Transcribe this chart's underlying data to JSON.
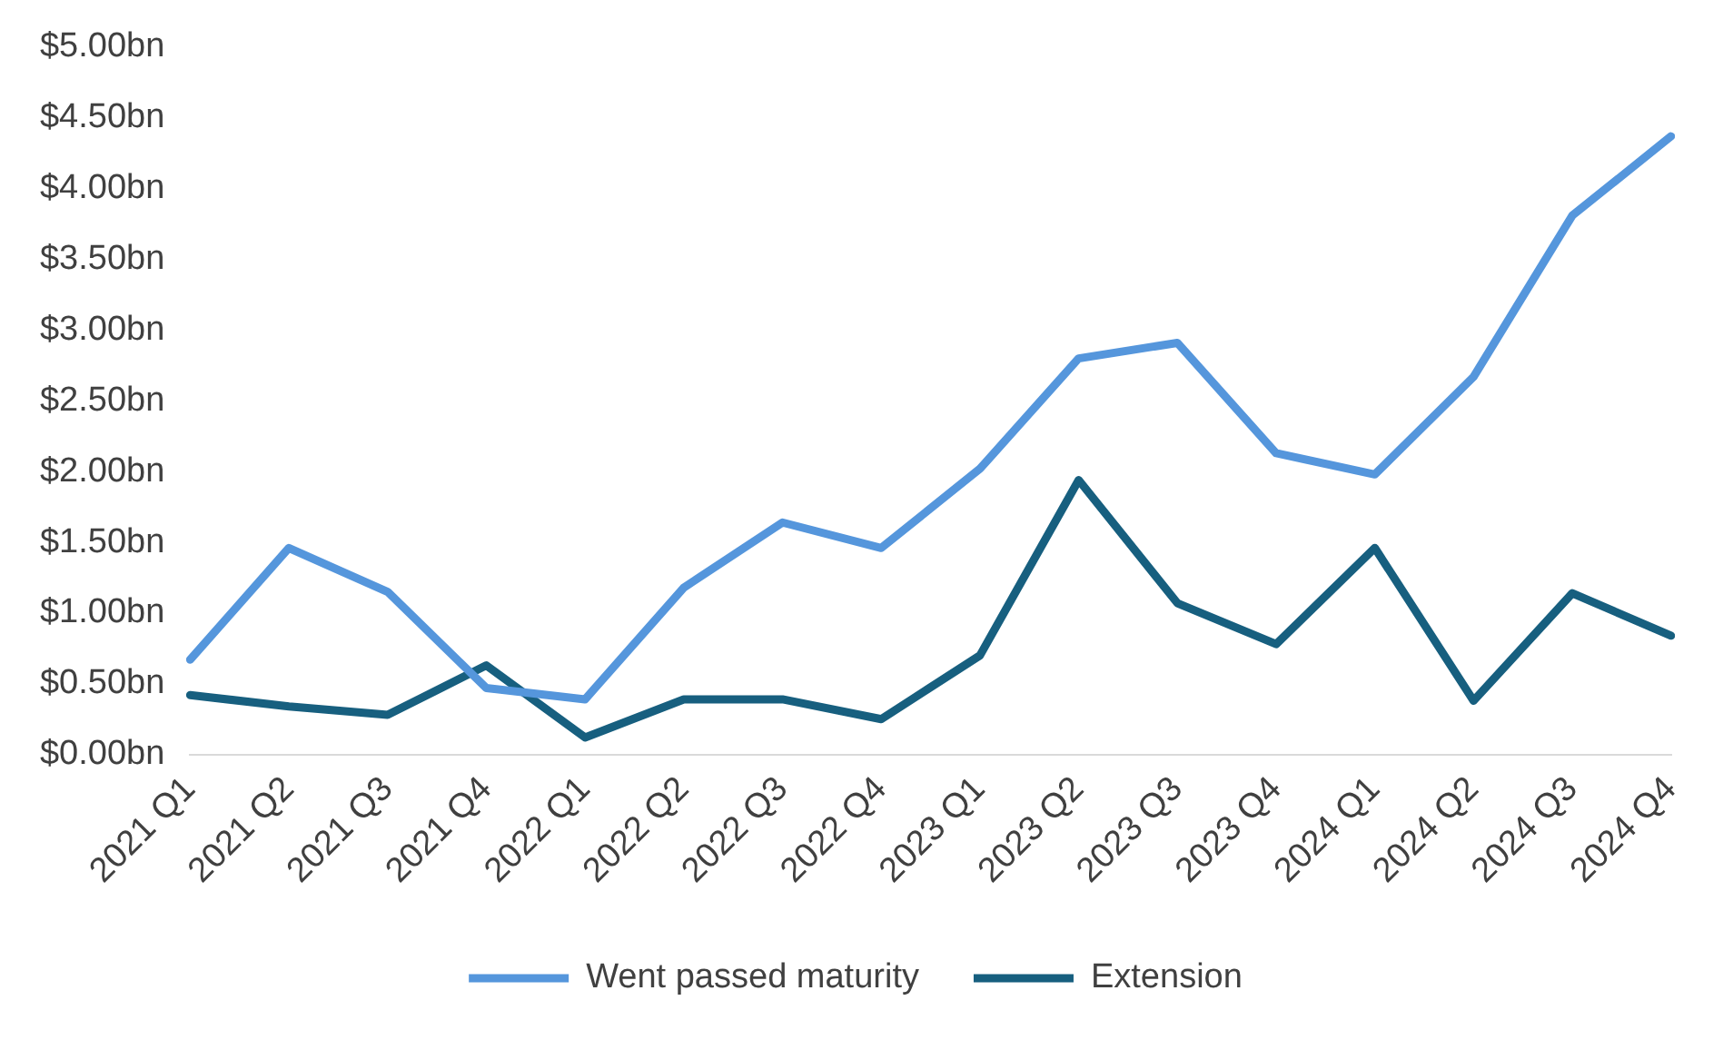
{
  "chart_data": {
    "type": "line",
    "categories": [
      "2021 Q1",
      "2021 Q2",
      "2021 Q3",
      "2021 Q4",
      "2022 Q1",
      "2022 Q2",
      "2022 Q3",
      "2022 Q4",
      "2023 Q1",
      "2023 Q2",
      "2023 Q3",
      "2023 Q4",
      "2024 Q1",
      "2024 Q2",
      "2024 Q3",
      "2024 Q4"
    ],
    "series": [
      {
        "name": "Went passed maturity",
        "color": "#5596dc",
        "values": [
          0.67,
          1.46,
          1.15,
          0.47,
          0.39,
          1.18,
          1.64,
          1.46,
          2.02,
          2.8,
          2.91,
          2.13,
          1.98,
          2.67,
          3.81,
          4.37
        ]
      },
      {
        "name": "Extension",
        "color": "#175f7f",
        "values": [
          0.42,
          0.34,
          0.28,
          0.63,
          0.12,
          0.39,
          0.39,
          0.25,
          0.7,
          1.94,
          1.07,
          0.78,
          1.46,
          0.38,
          1.14,
          0.84
        ]
      }
    ],
    "ylim": [
      0,
      5
    ],
    "yticks": [
      {
        "value": 0,
        "label": "$0.00bn"
      },
      {
        "value": 0.5,
        "label": "$0.50bn"
      },
      {
        "value": 1,
        "label": "$1.00bn"
      },
      {
        "value": 1.5,
        "label": "$1.50bn"
      },
      {
        "value": 2,
        "label": "$2.00bn"
      },
      {
        "value": 2.5,
        "label": "$2.50bn"
      },
      {
        "value": 3,
        "label": "$3.00bn"
      },
      {
        "value": 3.5,
        "label": "$3.50bn"
      },
      {
        "value": 4,
        "label": "$4.00bn"
      },
      {
        "value": 4.5,
        "label": "$4.50bn"
      },
      {
        "value": 5,
        "label": "$5.00bn"
      }
    ],
    "grid": false,
    "legend": "bottom",
    "marker": "none",
    "line_style": "solid"
  }
}
